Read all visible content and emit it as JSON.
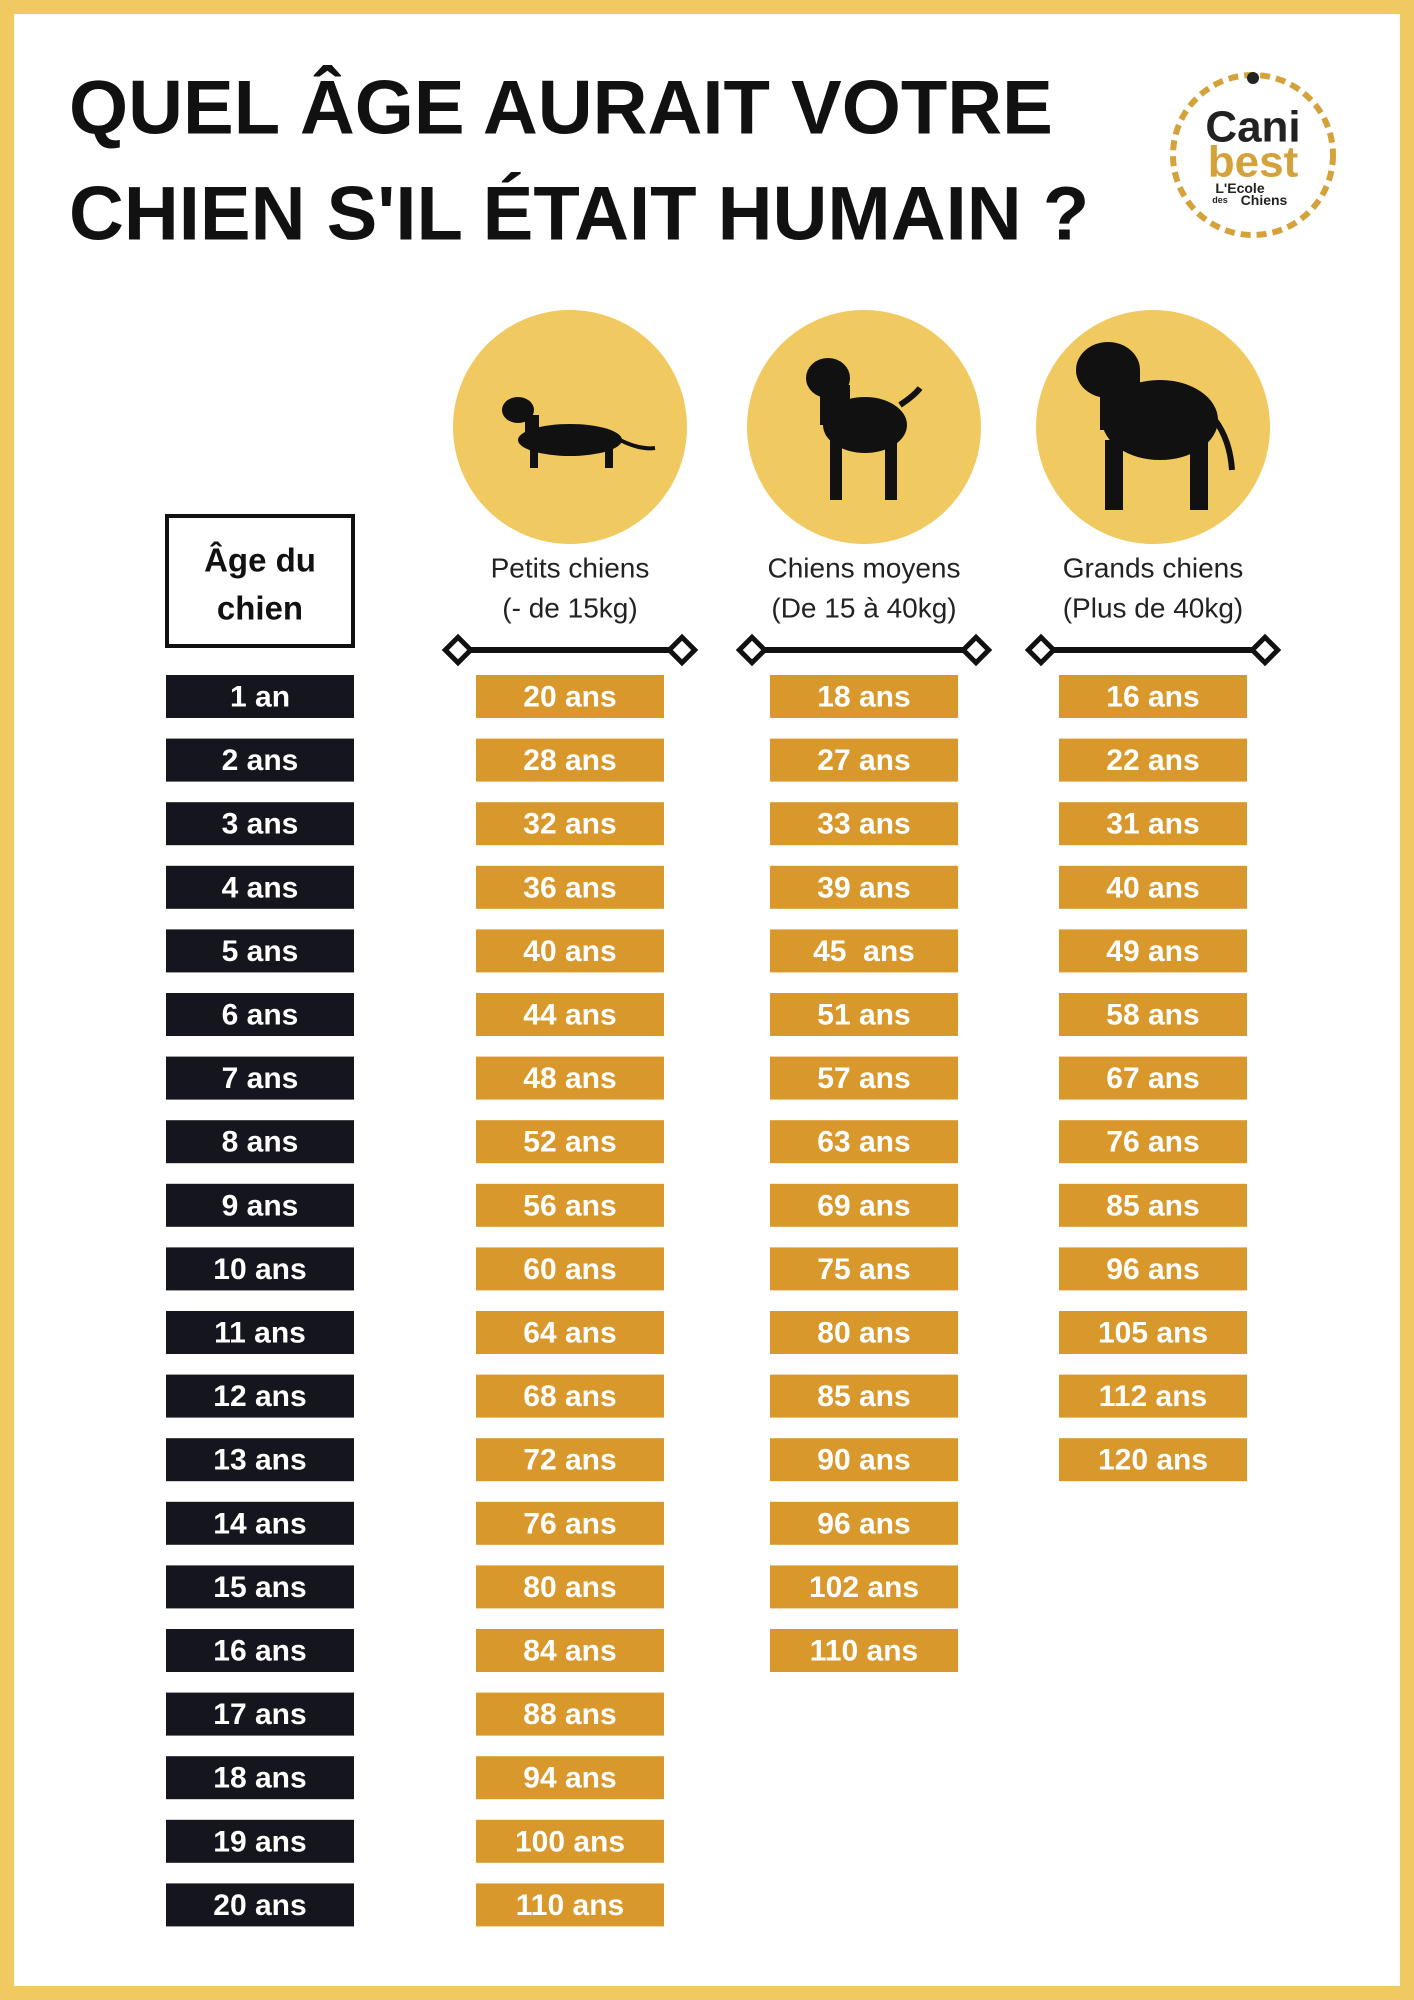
{
  "header": {
    "title": [
      "QUEL ÂGE AURAIT VOTRE",
      "CHIEN S'IL ÉTAIT HUMAIN ?"
    ],
    "logo": [
      "Cani",
      "best",
      "L'Ecole",
      "des",
      "Chiens"
    ]
  },
  "table": {
    "age_header": [
      "Âge du",
      "chien"
    ],
    "ages": [
      "1 an",
      "2 ans",
      "3 ans",
      "4 ans",
      "5 ans",
      "6 ans",
      "7 ans",
      "8 ans",
      "9 ans",
      "10 ans",
      "11 ans",
      "12 ans",
      "13 ans",
      "14 ans",
      "15 ans",
      "16 ans",
      "17 ans",
      "18 ans",
      "19 ans",
      "20 ans"
    ],
    "columns": [
      {
        "name": [
          "Petits chiens",
          "(- de 15kg)"
        ],
        "values": [
          "20 ans",
          "28 ans",
          "32 ans",
          "36 ans",
          "40 ans",
          "44 ans",
          "48 ans",
          "52 ans",
          "56 ans",
          "60 ans",
          "64 ans",
          "68 ans",
          "72 ans",
          "76 ans",
          "80 ans",
          "84 ans",
          "88 ans",
          "94 ans",
          "100 ans",
          "110 ans"
        ]
      },
      {
        "name": [
          "Chiens moyens",
          "(De 15 à 40kg)"
        ],
        "values": [
          "18 ans",
          "27 ans",
          "33 ans",
          "39 ans",
          "45  ans",
          "51 ans",
          "57 ans",
          "63 ans",
          "69 ans",
          "75 ans",
          "80 ans",
          "85 ans",
          "90 ans",
          "96 ans",
          "102 ans",
          "110 ans"
        ]
      },
      {
        "name": [
          "Grands chiens",
          "(Plus de 40kg)"
        ],
        "values": [
          "16 ans",
          "22 ans",
          "31 ans",
          "40 ans",
          "49 ans",
          "58 ans",
          "67 ans",
          "76 ans",
          "85 ans",
          "96 ans",
          "105 ans",
          "112 ans",
          "120 ans"
        ]
      }
    ]
  }
}
